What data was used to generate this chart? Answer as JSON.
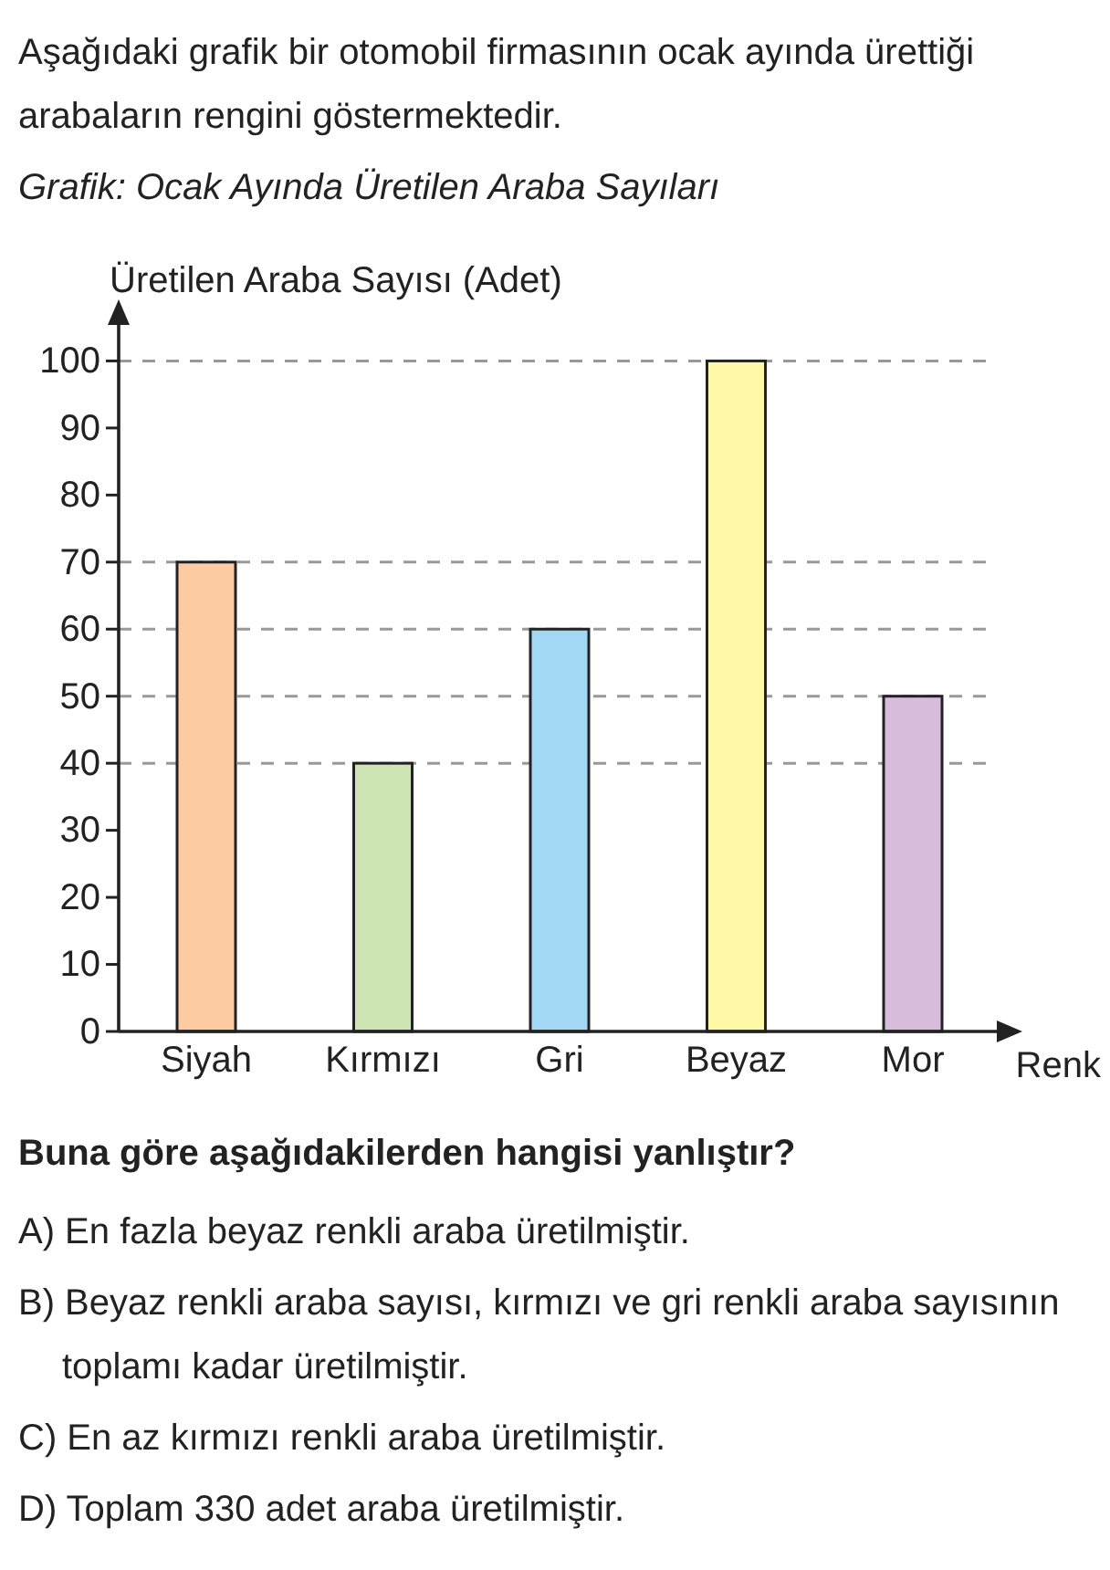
{
  "chart_data": {
    "type": "bar",
    "subtitle": "Aşağıdaki grafik bir otomobil firmasının ocak ayında ürettiği arabaların rengini göstermektedir.",
    "title": "Grafik: Ocak Ayında Üretilen Araba Sayıları",
    "ylabel": "Üretilen Araba Sayısı (Adet)",
    "xlabel": "Renk",
    "categories": [
      "Siyah",
      "Kırmızı",
      "Gri",
      "Beyaz",
      "Mor"
    ],
    "values": [
      70,
      40,
      60,
      100,
      50
    ],
    "colors": [
      "#fccba2",
      "#cde4b5",
      "#a3d8f5",
      "#fdf9a9",
      "#d8bcdc"
    ],
    "ylim": [
      0,
      107
    ],
    "yticks": [
      0,
      10,
      20,
      30,
      40,
      50,
      60,
      70,
      80,
      90,
      100
    ],
    "ref_lines": [
      {
        "axis": "y",
        "value": 100,
        "color": "#999999",
        "line_style": "dashed"
      },
      {
        "axis": "y",
        "value": 70,
        "color": "#999999",
        "line_style": "dashed"
      },
      {
        "axis": "y",
        "value": 60,
        "color": "#999999",
        "line_style": "dashed"
      },
      {
        "axis": "y",
        "value": 50,
        "color": "#999999",
        "line_style": "dashed"
      },
      {
        "axis": "y",
        "value": 40,
        "color": "#999999",
        "line_style": "dashed"
      }
    ],
    "annotations": [
      "Buna göre aşağıdakilerden hangisi yanlıştır?",
      "A) En fazla beyaz renkli araba üretilmiştir.",
      "B) Beyaz renkli araba sayısı, kırmızı ve gri renkli araba sayısının toplamı kadar üretilmiştir.",
      "C) En az kırmızı renkli araba üretilmiştir.",
      "D) Toplam 330 adet araba üretilmiştir."
    ]
  }
}
